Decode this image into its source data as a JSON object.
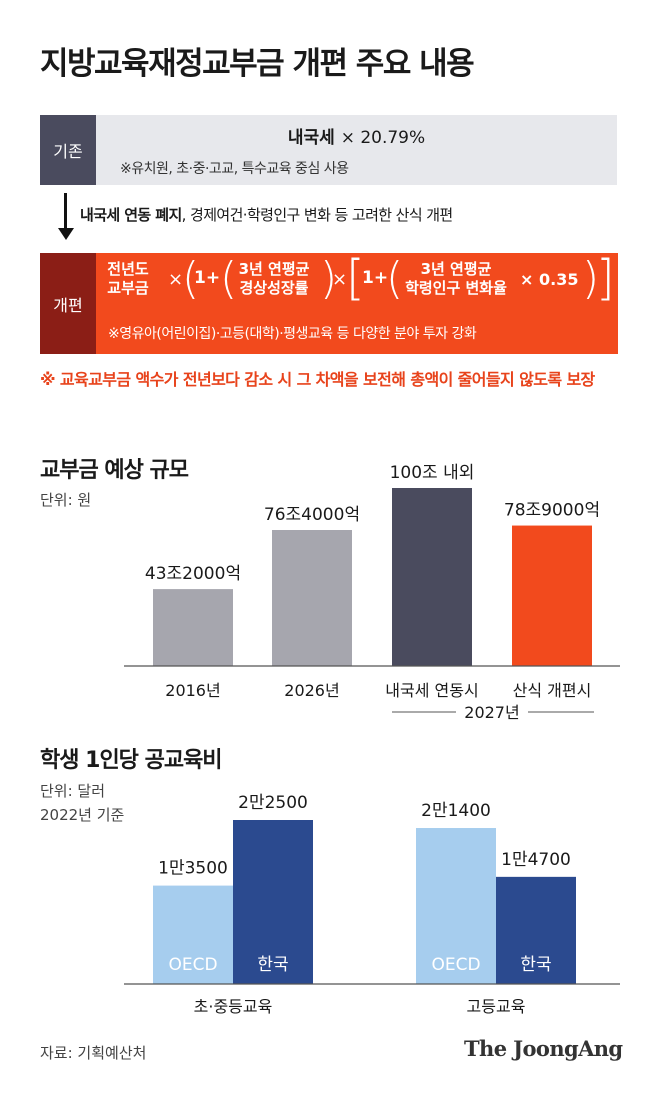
{
  "title": "지방교육재정교부금 개편 주요 내용",
  "old_system": {
    "label": "기존",
    "formula_base": "내국세",
    "formula_rate": "× 20.79%",
    "note": "※유치원, 초·중·고교, 특수교육 중심 사용"
  },
  "change": {
    "bold": "내국세 연동 폐지",
    "rest": ", 경제여건·학령인구 변화 등 고려한 산식 개편"
  },
  "new_system": {
    "label": "개편",
    "term1_line1": "전년도",
    "term1_line2": "교부금",
    "times": "×",
    "one_plus": "1+",
    "term2_line1": "3년 연평균",
    "term2_line2": "경상성장률",
    "term3_line1": "3년 연평균",
    "term3_line2": "학령인구 변화율",
    "coef": "× 0.35",
    "note": "※영유아(어린이집)·고등(대학)·평생교육 등 다양한 분야 투자 강화"
  },
  "guarantee": "※ 교육교부금 액수가 전년보다 감소 시 그 차액을 보전해 총액이 줄어들지 않도록 보장",
  "section1": {
    "title": "교부금 예상 규모",
    "unit": "단위: 원"
  },
  "section2": {
    "title": "학생 1인당 공교육비",
    "unit_line1": "단위: 달러",
    "unit_line2": "2022년 기준"
  },
  "chart_data": [
    {
      "type": "bar",
      "title": "교부금 예상 규모",
      "unit": "단위: 원",
      "categories": [
        "2016년",
        "2026년",
        "내국세 연동시",
        "산식 개편시"
      ],
      "group_label": "2027년",
      "values": [
        43.2,
        76.4,
        100,
        78.9
      ],
      "value_labels": [
        "43조2000억",
        "76조4000억",
        "100조 내외",
        "78조9000억"
      ],
      "colors": [
        "#a6a6ae",
        "#a6a6ae",
        "#4a4b5e",
        "#f24a1d"
      ],
      "ylim": [
        0,
        100
      ]
    },
    {
      "type": "bar",
      "title": "학생 1인당 공교육비",
      "unit": "단위: 달러",
      "categories": [
        "초·중등교육",
        "고등교육"
      ],
      "series": [
        {
          "name": "OECD",
          "values": [
            13500,
            21400
          ],
          "value_labels": [
            "1만3500",
            "2만1400"
          ],
          "color": "#a6cdee"
        },
        {
          "name": "한국",
          "values": [
            22500,
            14700
          ],
          "value_labels": [
            "2만2500",
            "1만4700"
          ],
          "color": "#2b4a8f"
        }
      ],
      "ylim": [
        0,
        22500
      ]
    }
  ],
  "footer": {
    "source": "자료: 기획예산처",
    "logo": "The JoongAng"
  }
}
